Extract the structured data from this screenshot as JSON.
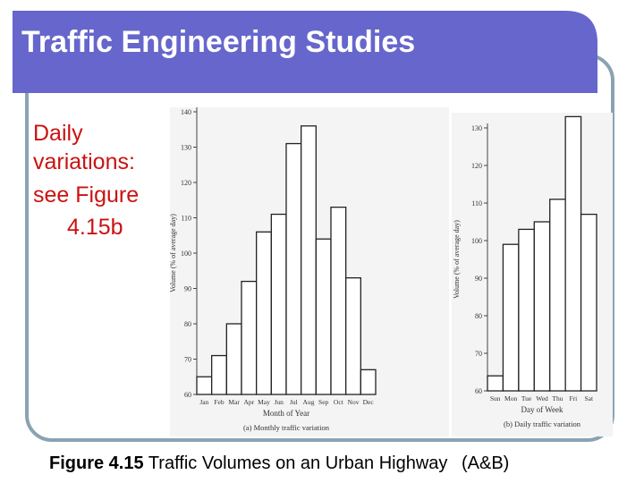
{
  "slide_title": "Traffic Engineering Studies",
  "side_text": [
    "Daily",
    "variations:",
    "see Figure",
    "4.15b"
  ],
  "caption": {
    "figure": "Figure 4.15",
    "text": "Traffic Volumes on an Urban Highway",
    "source": "(A&B)"
  },
  "chart_data": [
    {
      "type": "bar",
      "title": "(a) Monthly traffic variation",
      "x_label": "Month of Year",
      "y_label": "Volume (% of average day)",
      "categories": [
        "Jan",
        "Feb",
        "Mar",
        "Apr",
        "May",
        "Jun",
        "Jul",
        "Aug",
        "Sep",
        "Oct",
        "Nov",
        "Dec"
      ],
      "values": [
        65,
        71,
        80,
        92,
        106,
        111,
        131,
        136,
        104,
        113,
        93,
        67
      ],
      "color": "#ffffff",
      "ylim": [
        60,
        140
      ],
      "yticks": [
        60,
        70,
        80,
        90,
        100,
        110,
        120,
        130,
        140
      ]
    },
    {
      "type": "bar",
      "title": "(b) Daily traffic variation",
      "x_label": "Day of Week",
      "y_label": "Volume (% of average day)",
      "categories": [
        "Sun",
        "Mon",
        "Tue",
        "Wed",
        "Thu",
        "Fri",
        "Sat"
      ],
      "values": [
        64,
        99,
        103,
        105,
        111,
        133,
        107
      ],
      "color": "#ffffff",
      "ylim": [
        60,
        130
      ],
      "yticks": [
        60,
        70,
        80,
        90,
        100,
        110,
        120,
        130
      ]
    }
  ]
}
